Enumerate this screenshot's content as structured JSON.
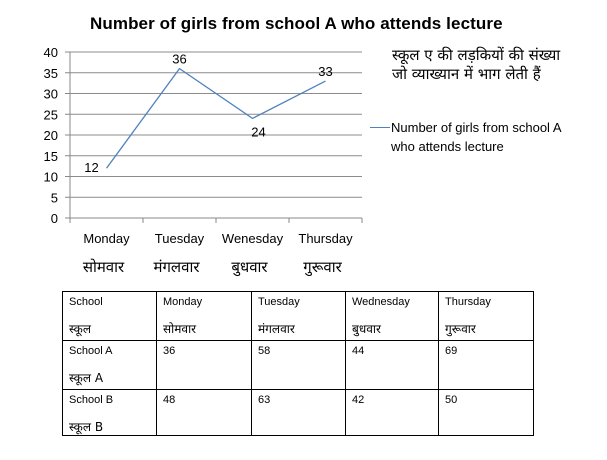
{
  "chart_data": {
    "type": "line",
    "title": "Number of girls from school A who attends lecture",
    "categories": [
      "Monday",
      "Tuesday",
      "Wenesday",
      "Thursday"
    ],
    "categories_hindi": [
      "सोमवार",
      "मंगलवार",
      "बुधवार",
      "गुरूवार"
    ],
    "series": [
      {
        "name": "Number of girls from school A who attends lecture",
        "values": [
          12,
          36,
          24,
          33
        ],
        "color": "#4f81bd"
      }
    ],
    "ylim": [
      0,
      40
    ],
    "yticks": [
      0,
      5,
      10,
      15,
      20,
      25,
      30,
      35,
      40
    ],
    "grid": true,
    "legend_position": "right"
  },
  "hindi_note": "स्कूल ए की लड़कियों की संख्या जो व्याख्यान में भाग लेती हैं",
  "table": {
    "header": [
      {
        "en": "School",
        "hi": "स्कूल"
      },
      {
        "en": "Monday",
        "hi": "सोमवार"
      },
      {
        "en": "Tuesday",
        "hi": "मंगलवार"
      },
      {
        "en": "Wednesday",
        "hi": "बुधवार"
      },
      {
        "en": "Thursday",
        "hi": "गुरूवार"
      }
    ],
    "rows": [
      {
        "school": {
          "en": "School A",
          "hi": "स्कूल A"
        },
        "values": [
          "36",
          "58",
          "44",
          "69"
        ]
      },
      {
        "school": {
          "en": "School B",
          "hi": "स्कूल B"
        },
        "values": [
          "48",
          "63",
          "42",
          "50"
        ]
      }
    ]
  }
}
